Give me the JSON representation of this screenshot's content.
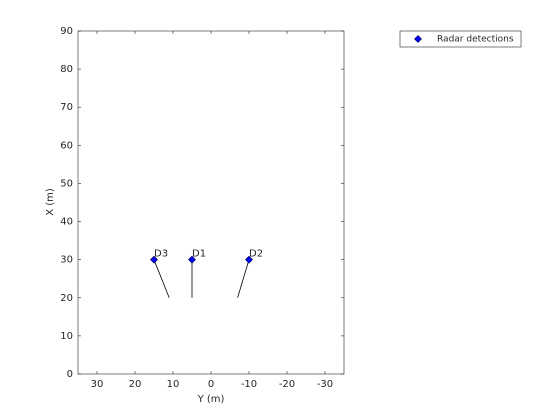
{
  "chart_data": {
    "type": "scatter",
    "xlabel": "Y (m)",
    "ylabel": "X (m)",
    "xlim": [
      35,
      -35
    ],
    "xticks": [
      30,
      20,
      10,
      0,
      -10,
      -20,
      -30
    ],
    "ylim": [
      0,
      90
    ],
    "yticks": [
      0,
      10,
      20,
      30,
      40,
      50,
      60,
      70,
      80,
      90
    ],
    "series": [
      {
        "name": "Radar detections",
        "color": "#0000ff",
        "x": [
          15,
          5,
          -10
        ],
        "values": [
          30,
          30,
          30
        ],
        "labels": [
          "D3",
          "D1",
          "D2"
        ]
      }
    ],
    "velocity_lines": [
      {
        "x": [
          15,
          11
        ],
        "values": [
          30,
          20
        ]
      },
      {
        "x": [
          5,
          5
        ],
        "values": [
          30,
          20
        ]
      },
      {
        "x": [
          -10,
          -7
        ],
        "values": [
          30,
          20
        ]
      }
    ],
    "legend": "outside-top-right"
  }
}
